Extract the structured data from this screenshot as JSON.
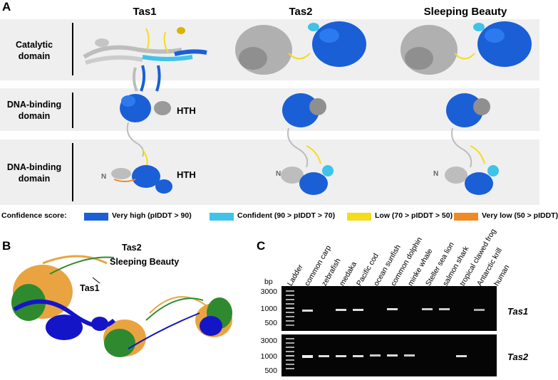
{
  "panels": {
    "a": "A",
    "b": "B",
    "c": "C"
  },
  "panel_a": {
    "columns": [
      "Tas1",
      "Tas2",
      "Sleeping Beauty"
    ],
    "rows": [
      {
        "line1": "Catalytic",
        "line2": "domain"
      },
      {
        "line1": "DNA-binding",
        "line2": "domain"
      },
      {
        "line1": "DNA-binding",
        "line2": "domain"
      }
    ],
    "hth_label": "HTH",
    "n_label": "N",
    "legend": {
      "title": "Confidence score:",
      "items": [
        {
          "label": "Very high (pIDDT > 90)",
          "color": "#1a5fd6"
        },
        {
          "label": "Confident (90 > pIDDT > 70)",
          "color": "#3fc3e8"
        },
        {
          "label": "Low (70 > pIDDT > 50)",
          "color": "#f3dc1c"
        },
        {
          "label": "Very low (50 > pIDDT)",
          "color": "#f08a24"
        }
      ]
    }
  },
  "panel_b": {
    "labels": {
      "tas2": "Tas2",
      "sb": "Sleeping Beauty",
      "tas1": "Tas1"
    },
    "colors": {
      "tas1": "#1515c8",
      "tas2": "#2f8a2f",
      "sb": "#e9a441"
    }
  },
  "panel_c": {
    "bp_unit": "bp",
    "bp_ticks": [
      "3000",
      "1000",
      "500"
    ],
    "lanes": [
      "Ladder",
      "common carp",
      "zebrafish",
      "medaka",
      "Pacific cod",
      "ocean sunfish",
      "common dolphin",
      "minke whale",
      "Steller sea lion",
      "salmon shark",
      "tropical clawed frog",
      "Antarctic krill",
      "human"
    ],
    "genes": [
      "Tas1",
      "Tas2"
    ]
  }
}
